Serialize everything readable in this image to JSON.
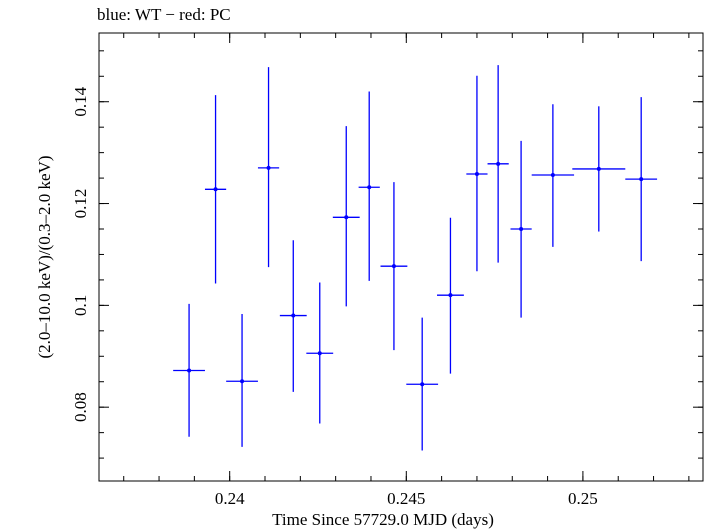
{
  "chart_data": {
    "type": "scatter",
    "title": "blue: WT − red: PC",
    "xlabel": "Time Since 57729.0 MJD (days)",
    "ylabel": "(2.0–10.0 keV)/(0.3–2.0 keV)",
    "xlim": [
      0.2363,
      0.2534
    ],
    "ylim": [
      0.0655,
      0.1535
    ],
    "x_ticks": [
      "0.24",
      "0.245",
      "0.25"
    ],
    "x_tick_values": [
      0.24,
      0.245,
      0.25
    ],
    "y_ticks": [
      "0.08",
      "0.1",
      "0.12",
      "0.14"
    ],
    "y_tick_values": [
      0.08,
      0.1,
      0.12,
      0.14
    ],
    "grid": false,
    "series": [
      {
        "color": "#0000ff",
        "points": [
          {
            "x": 0.23885,
            "xerr": 0.00045,
            "y": 0.0872,
            "ylo": 0.0742,
            "yhi": 0.1003
          },
          {
            "x": 0.2396,
            "xerr": 0.0003,
            "y": 0.1228,
            "ylo": 0.1043,
            "yhi": 0.1413
          },
          {
            "x": 0.24035,
            "xerr": 0.00045,
            "y": 0.0851,
            "ylo": 0.0722,
            "yhi": 0.0983
          },
          {
            "x": 0.2411,
            "xerr": 0.0003,
            "y": 0.127,
            "ylo": 0.1075,
            "yhi": 0.1468
          },
          {
            "x": 0.2418,
            "xerr": 0.00038,
            "y": 0.098,
            "ylo": 0.083,
            "yhi": 0.1128
          },
          {
            "x": 0.24255,
            "xerr": 0.00038,
            "y": 0.0906,
            "ylo": 0.0768,
            "yhi": 0.1045
          },
          {
            "x": 0.2433,
            "xerr": 0.00038,
            "y": 0.1173,
            "ylo": 0.0998,
            "yhi": 0.1352
          },
          {
            "x": 0.24395,
            "xerr": 0.0003,
            "y": 0.1232,
            "ylo": 0.1048,
            "yhi": 0.142
          },
          {
            "x": 0.24465,
            "xerr": 0.00038,
            "y": 0.1077,
            "ylo": 0.0912,
            "yhi": 0.1242
          },
          {
            "x": 0.24545,
            "xerr": 0.00045,
            "y": 0.0845,
            "ylo": 0.0715,
            "yhi": 0.0976
          },
          {
            "x": 0.24625,
            "xerr": 0.00038,
            "y": 0.102,
            "ylo": 0.0866,
            "yhi": 0.1172
          },
          {
            "x": 0.247,
            "xerr": 0.0003,
            "y": 0.1258,
            "ylo": 0.1067,
            "yhi": 0.1451
          },
          {
            "x": 0.2476,
            "xerr": 0.0003,
            "y": 0.1278,
            "ylo": 0.1084,
            "yhi": 0.1472
          },
          {
            "x": 0.24825,
            "xerr": 0.0003,
            "y": 0.115,
            "ylo": 0.0976,
            "yhi": 0.1323
          },
          {
            "x": 0.24915,
            "xerr": 0.0006,
            "y": 0.1256,
            "ylo": 0.1115,
            "yhi": 0.1395
          },
          {
            "x": 0.25045,
            "xerr": 0.00075,
            "y": 0.1268,
            "ylo": 0.1145,
            "yhi": 0.1391
          },
          {
            "x": 0.25165,
            "xerr": 0.00045,
            "y": 0.1248,
            "ylo": 0.1087,
            "yhi": 0.1409
          }
        ]
      }
    ]
  }
}
